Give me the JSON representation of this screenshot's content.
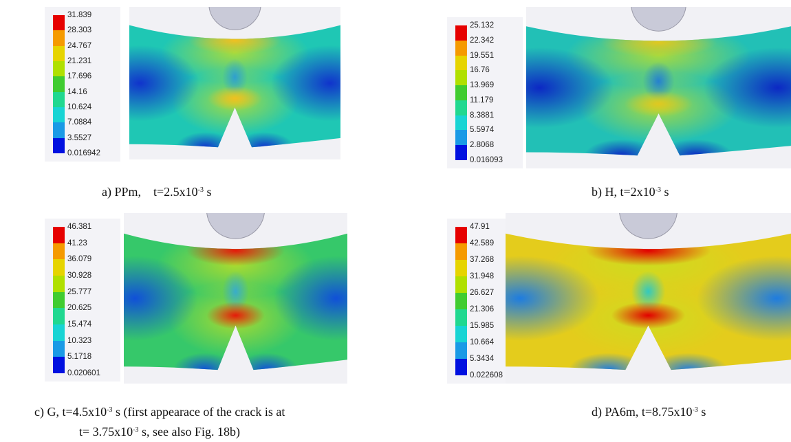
{
  "panels": [
    {
      "legend": [
        "31.839",
        "28.303",
        "24.767",
        "21.231",
        "17.696",
        "14.16",
        "10.624",
        "7.0884",
        "3.5527",
        "0.016942"
      ],
      "caption": [
        [
          {
            "text": "a) PPm,    t=2.5x10"
          },
          {
            "sup": "-3"
          },
          {
            "text": " s"
          }
        ]
      ]
    },
    {
      "legend": [
        "25.132",
        "22.342",
        "19.551",
        "16.76",
        "13.969",
        "11.179",
        "8.3881",
        "5.5974",
        "2.8068",
        "0.016093"
      ],
      "caption": [
        [
          {
            "text": "b) H, t=2x10"
          },
          {
            "sup": "-3"
          },
          {
            "text": " s"
          }
        ]
      ]
    },
    {
      "legend": [
        "46.381",
        "41.23",
        "36.079",
        "30.928",
        "25.777",
        "20.625",
        "15.474",
        "10.323",
        "5.1718",
        "0.020601"
      ],
      "caption": [
        [
          {
            "text": "c) G, t=4.5x10"
          },
          {
            "sup": "-3"
          },
          {
            "text": " s (first appearace of the crack is at"
          }
        ],
        [
          {
            "text": "t= 3.75x10"
          },
          {
            "sup": "-3"
          },
          {
            "text": " s, see also Fig. 18b)"
          }
        ]
      ]
    },
    {
      "legend": [
        "47.91",
        "42.589",
        "37.268",
        "31.948",
        "26.627",
        "21.306",
        "15.985",
        "10.664",
        "5.3434",
        "0.022608"
      ],
      "caption": [
        [
          {
            "text": "d) PA6m, t=8.75x10"
          },
          {
            "sup": "-3"
          },
          {
            "text": " s"
          }
        ]
      ]
    }
  ]
}
